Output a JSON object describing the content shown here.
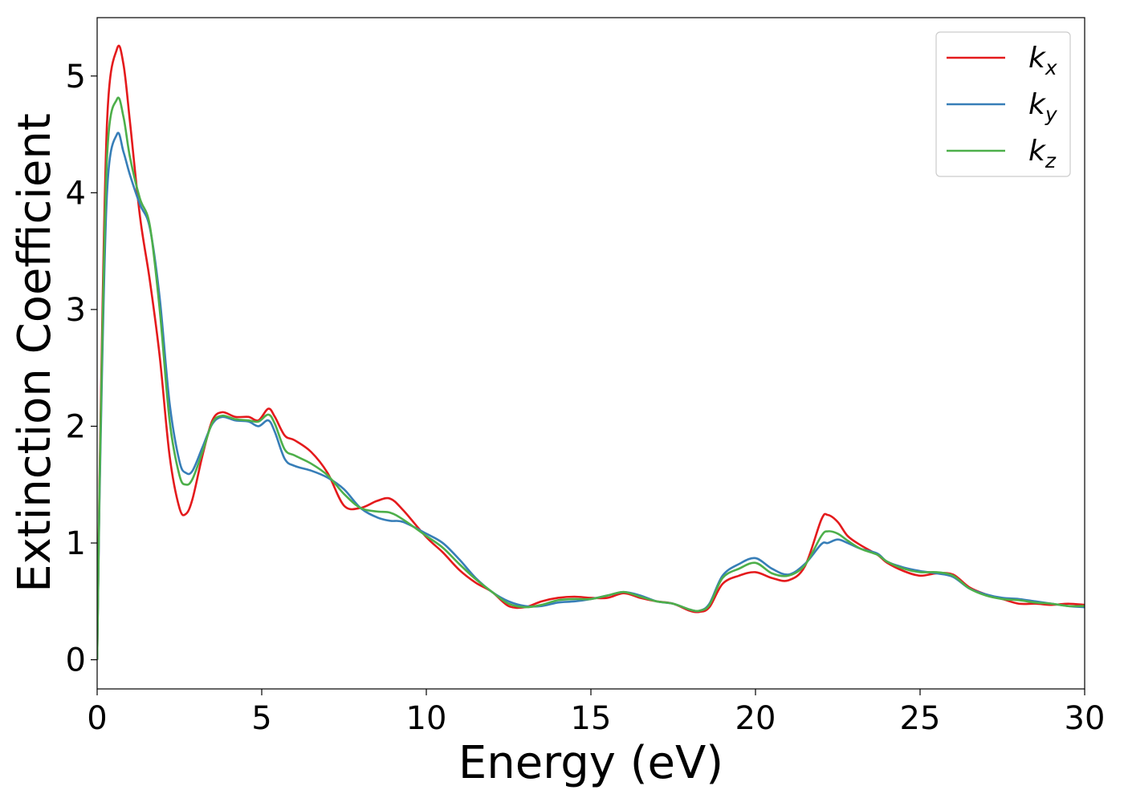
{
  "chart_data": {
    "type": "line",
    "xlabel": "Energy (eV)",
    "ylabel": "Extinction Coefficient",
    "xlim": [
      0,
      30
    ],
    "ylim": [
      -0.25,
      5.5
    ],
    "xticks": [
      0,
      5,
      10,
      15,
      20,
      25,
      30
    ],
    "yticks": [
      0,
      1,
      2,
      3,
      4,
      5
    ],
    "xtick_labels": [
      "0",
      "5",
      "10",
      "15",
      "20",
      "25",
      "30"
    ],
    "ytick_labels": [
      "0",
      "1",
      "2",
      "3",
      "4",
      "5"
    ],
    "grid": false,
    "legend_position": "top-right",
    "colors": {
      "kx": "#e41a1c",
      "ky": "#377eb8",
      "kz": "#4daf4a"
    },
    "series": [
      {
        "name": "k",
        "subscript": "x",
        "color": "#e41a1c",
        "x": [
          0,
          0.1,
          0.3,
          0.6,
          0.8,
          1.0,
          1.3,
          1.6,
          1.9,
          2.2,
          2.5,
          2.7,
          2.9,
          3.2,
          3.5,
          3.8,
          4.2,
          4.6,
          4.9,
          5.2,
          5.4,
          5.7,
          6.0,
          6.5,
          7.0,
          7.5,
          8.0,
          8.5,
          8.9,
          9.3,
          10.0,
          10.5,
          11.0,
          11.5,
          12.0,
          12.5,
          13.0,
          13.5,
          14.0,
          14.5,
          15.0,
          15.5,
          16.0,
          16.5,
          17.0,
          17.5,
          18.0,
          18.3,
          18.6,
          19.0,
          19.5,
          20.0,
          20.5,
          21.0,
          21.5,
          22.0,
          22.2,
          22.5,
          22.8,
          23.2,
          23.7,
          24.0,
          24.5,
          25.0,
          25.5,
          26.0,
          26.5,
          27.0,
          27.5,
          28.0,
          28.5,
          29.0,
          29.5,
          30.0
        ],
        "y": [
          0.0,
          2.0,
          4.6,
          5.23,
          5.1,
          4.6,
          3.8,
          3.25,
          2.6,
          1.75,
          1.3,
          1.25,
          1.38,
          1.75,
          2.05,
          2.12,
          2.08,
          2.08,
          2.05,
          2.15,
          2.08,
          1.92,
          1.88,
          1.78,
          1.6,
          1.32,
          1.3,
          1.36,
          1.38,
          1.28,
          1.05,
          0.92,
          0.77,
          0.66,
          0.58,
          0.46,
          0.45,
          0.5,
          0.53,
          0.54,
          0.53,
          0.53,
          0.57,
          0.53,
          0.5,
          0.48,
          0.42,
          0.41,
          0.45,
          0.65,
          0.72,
          0.75,
          0.7,
          0.68,
          0.8,
          1.2,
          1.24,
          1.18,
          1.06,
          0.98,
          0.9,
          0.83,
          0.76,
          0.72,
          0.74,
          0.73,
          0.62,
          0.56,
          0.52,
          0.48,
          0.48,
          0.47,
          0.48,
          0.47
        ]
      },
      {
        "name": "k",
        "subscript": "y",
        "color": "#377eb8",
        "x": [
          0,
          0.1,
          0.3,
          0.6,
          0.8,
          1.0,
          1.3,
          1.6,
          1.9,
          2.2,
          2.5,
          2.7,
          2.9,
          3.2,
          3.5,
          3.8,
          4.2,
          4.6,
          4.9,
          5.2,
          5.4,
          5.7,
          6.0,
          6.5,
          7.0,
          7.5,
          8.0,
          8.5,
          8.9,
          9.3,
          10.0,
          10.5,
          11.0,
          11.5,
          12.0,
          12.5,
          13.0,
          13.5,
          14.0,
          14.5,
          15.0,
          15.5,
          16.0,
          16.5,
          17.0,
          17.5,
          18.0,
          18.3,
          18.6,
          19.0,
          19.5,
          20.0,
          20.5,
          21.0,
          21.5,
          22.0,
          22.2,
          22.5,
          22.8,
          23.2,
          23.7,
          24.0,
          24.5,
          25.0,
          25.5,
          26.0,
          26.5,
          27.0,
          27.5,
          28.0,
          28.5,
          29.0,
          29.5,
          30.0
        ],
        "y": [
          0.0,
          1.8,
          4.0,
          4.5,
          4.35,
          4.15,
          3.9,
          3.7,
          3.1,
          2.2,
          1.7,
          1.6,
          1.62,
          1.82,
          2.02,
          2.08,
          2.05,
          2.04,
          2.0,
          2.05,
          1.95,
          1.72,
          1.66,
          1.62,
          1.56,
          1.46,
          1.3,
          1.22,
          1.19,
          1.18,
          1.08,
          1.0,
          0.86,
          0.7,
          0.58,
          0.5,
          0.46,
          0.46,
          0.49,
          0.5,
          0.52,
          0.55,
          0.58,
          0.55,
          0.5,
          0.48,
          0.43,
          0.42,
          0.48,
          0.72,
          0.82,
          0.87,
          0.78,
          0.73,
          0.82,
          0.99,
          1.0,
          1.03,
          1.0,
          0.95,
          0.91,
          0.84,
          0.79,
          0.76,
          0.74,
          0.71,
          0.61,
          0.56,
          0.53,
          0.52,
          0.5,
          0.48,
          0.46,
          0.45
        ]
      },
      {
        "name": "k",
        "subscript": "z",
        "color": "#4daf4a",
        "x": [
          0,
          0.1,
          0.3,
          0.6,
          0.8,
          1.0,
          1.3,
          1.6,
          1.9,
          2.2,
          2.5,
          2.7,
          2.9,
          3.2,
          3.5,
          3.8,
          4.2,
          4.6,
          4.9,
          5.2,
          5.4,
          5.7,
          6.0,
          6.5,
          7.0,
          7.5,
          8.0,
          8.5,
          8.9,
          9.3,
          10.0,
          10.5,
          11.0,
          11.5,
          12.0,
          12.5,
          13.0,
          13.5,
          14.0,
          14.5,
          15.0,
          15.5,
          16.0,
          16.5,
          17.0,
          17.5,
          18.0,
          18.3,
          18.6,
          19.0,
          19.5,
          20.0,
          20.5,
          21.0,
          21.5,
          22.0,
          22.2,
          22.5,
          22.8,
          23.2,
          23.7,
          24.0,
          24.5,
          25.0,
          25.5,
          26.0,
          26.5,
          27.0,
          27.5,
          28.0,
          28.5,
          29.0,
          29.5,
          30.0
        ],
        "y": [
          0.0,
          1.9,
          4.3,
          4.8,
          4.65,
          4.3,
          3.95,
          3.72,
          3.0,
          2.05,
          1.58,
          1.5,
          1.55,
          1.78,
          2.03,
          2.09,
          2.06,
          2.05,
          2.04,
          2.1,
          2.02,
          1.8,
          1.75,
          1.68,
          1.58,
          1.42,
          1.3,
          1.27,
          1.26,
          1.2,
          1.06,
          0.96,
          0.82,
          0.69,
          0.58,
          0.48,
          0.45,
          0.47,
          0.51,
          0.52,
          0.52,
          0.55,
          0.58,
          0.54,
          0.5,
          0.48,
          0.43,
          0.42,
          0.47,
          0.7,
          0.78,
          0.83,
          0.74,
          0.72,
          0.81,
          1.06,
          1.1,
          1.08,
          1.02,
          0.95,
          0.9,
          0.84,
          0.78,
          0.75,
          0.75,
          0.72,
          0.61,
          0.55,
          0.52,
          0.51,
          0.49,
          0.48,
          0.46,
          0.46
        ]
      }
    ]
  }
}
